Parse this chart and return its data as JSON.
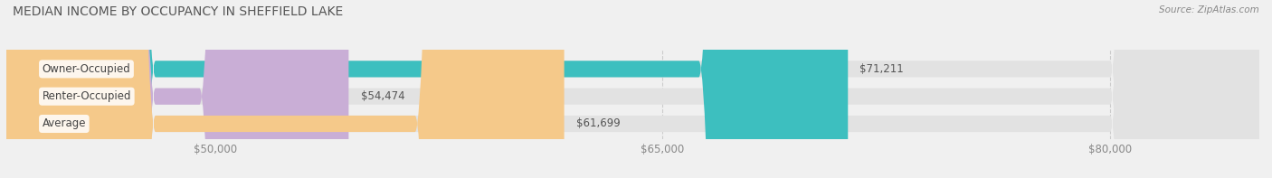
{
  "title": "MEDIAN INCOME BY OCCUPANCY IN SHEFFIELD LAKE",
  "source": "Source: ZipAtlas.com",
  "categories": [
    "Owner-Occupied",
    "Renter-Occupied",
    "Average"
  ],
  "values": [
    71211,
    54474,
    61699
  ],
  "bar_colors": [
    "#3dbfbf",
    "#c9aed6",
    "#f5c98a"
  ],
  "bar_labels": [
    "$71,211",
    "$54,474",
    "$61,699"
  ],
  "xmin": 43000,
  "xmax": 85000,
  "xticks": [
    50000,
    65000,
    80000
  ],
  "xtick_labels": [
    "$50,000",
    "$65,000",
    "$80,000"
  ],
  "background_color": "#f0f0f0",
  "bar_bg_color": "#e2e2e2",
  "title_fontsize": 10,
  "label_fontsize": 8.5,
  "tick_fontsize": 8.5
}
